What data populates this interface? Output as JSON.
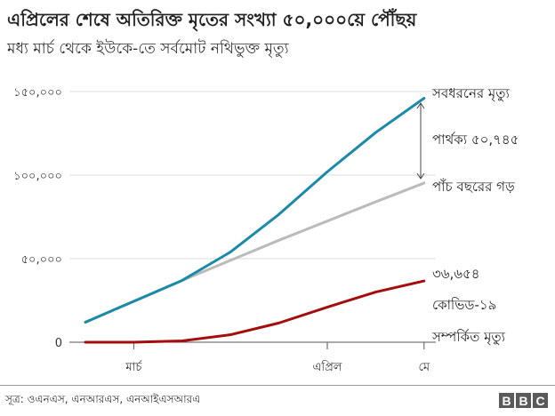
{
  "header": {
    "title": "এপ্রিলের শেষে অতিরিক্ত মৃতের সংখ্যা ৫০,০০০য়ে পৌঁছয়",
    "subtitle": "মধ্য মার্চ থেকে ইউকে-তে সর্বমোট নথিভুক্ত মৃত্যু"
  },
  "footer": {
    "source": "সূত্র: ওএনএস, এনআরএস, এনআইএসআরএ",
    "logo": [
      "B",
      "B",
      "C"
    ]
  },
  "colors": {
    "all_deaths": "#1a8aa8",
    "five_year_avg": "#bbbbbb",
    "covid": "#a50d0d",
    "grid": "#dddddd",
    "axis": "#555555"
  },
  "chart_data": {
    "type": "line",
    "title": "এপ্রিলের শেষে অতিরিক্ত মৃতের সংখ্যা ৫০,০০০য়ে পৌঁছয়",
    "subtitle": "মধ্য মার্চ থেকে ইউকে-তে সর্বমোট নথিভুক্ত মৃত্যু",
    "xlabel": "",
    "ylabel": "",
    "ylim": [
      0,
      150000
    ],
    "yticks": [
      0,
      50000,
      100000,
      150000
    ],
    "ytick_labels": [
      "0",
      "৫০,০০০",
      "১০০,০০০",
      "১৫০,০০০"
    ],
    "x": [
      0,
      1,
      2,
      3,
      4,
      5,
      6,
      7
    ],
    "xticks": [
      {
        "index": 1,
        "label": "মার্চ"
      },
      {
        "index": 5,
        "label": "এপ্রিল"
      },
      {
        "index": 7,
        "label": "মে"
      }
    ],
    "grid": true,
    "series": [
      {
        "name": "সবধরনের মৃত্যু",
        "color": "#1a8aa8",
        "values": [
          12000,
          24500,
          37000,
          54000,
          76500,
          102000,
          125500,
          146000
        ]
      },
      {
        "name": "পাঁচ বছরের গড়",
        "color": "#bbbbbb",
        "values": [
          12000,
          24500,
          37000,
          49000,
          61000,
          72500,
          84000,
          95255
        ]
      },
      {
        "name": "কোভিড-১৯ সম্পর্কিত মৃত্যু",
        "color": "#a50d0d",
        "values": [
          0,
          0,
          800,
          4500,
          11500,
          21000,
          30000,
          36654
        ]
      }
    ],
    "annotations": [
      {
        "label": "সবধরনের মৃত্যু",
        "series": 0
      },
      {
        "label": "পার্থক্য ৫০,৭৪৫",
        "type": "double-arrow",
        "between": [
          0,
          1
        ],
        "value": 50745
      },
      {
        "label": "পাঁচ বছরের গড়",
        "series": 1
      },
      {
        "label": "৩৬,৬৫৪",
        "series": 2,
        "value": 36654
      },
      {
        "label": "কোভিড-১৯",
        "series": 2
      },
      {
        "label": "সম্পর্কিত মৃত্যু",
        "series": 2
      }
    ],
    "legend_position": "inline-right"
  }
}
